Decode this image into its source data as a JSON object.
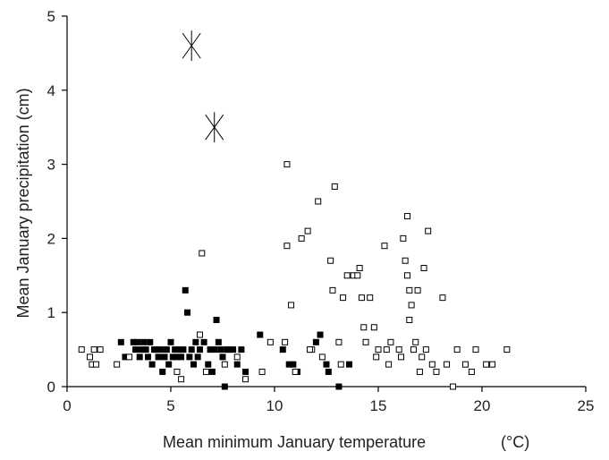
{
  "chart_data": {
    "type": "scatter",
    "xlabel": "Mean minimum January temperature",
    "xlabel_unit": "(°C)",
    "ylabel": "Mean January precipitation (cm)",
    "xlim": [
      0,
      25
    ],
    "ylim": [
      0,
      5
    ],
    "xticks": [
      0,
      5,
      10,
      15,
      20,
      25
    ],
    "yticks": [
      0,
      1,
      2,
      3,
      4,
      5
    ],
    "grid": false,
    "series": [
      {
        "marker": "filled-square",
        "color": "#000000",
        "points": [
          [
            2.6,
            0.6
          ],
          [
            2.8,
            0.4
          ],
          [
            3.2,
            0.6
          ],
          [
            3.3,
            0.5
          ],
          [
            3.4,
            0.6
          ],
          [
            3.5,
            0.4
          ],
          [
            3.6,
            0.5
          ],
          [
            3.7,
            0.6
          ],
          [
            3.8,
            0.5
          ],
          [
            3.9,
            0.4
          ],
          [
            4.0,
            0.6
          ],
          [
            4.1,
            0.3
          ],
          [
            4.2,
            0.5
          ],
          [
            4.3,
            0.5
          ],
          [
            4.4,
            0.4
          ],
          [
            4.5,
            0.5
          ],
          [
            4.6,
            0.2
          ],
          [
            4.7,
            0.4
          ],
          [
            4.8,
            0.5
          ],
          [
            4.9,
            0.3
          ],
          [
            5.0,
            0.6
          ],
          [
            5.1,
            0.4
          ],
          [
            5.2,
            0.5
          ],
          [
            5.3,
            0.4
          ],
          [
            5.4,
            0.5
          ],
          [
            5.5,
            0.4
          ],
          [
            5.6,
            0.5
          ],
          [
            5.7,
            1.3
          ],
          [
            5.8,
            1.0
          ],
          [
            5.9,
            0.4
          ],
          [
            6.0,
            0.5
          ],
          [
            6.1,
            0.3
          ],
          [
            6.2,
            0.6
          ],
          [
            6.3,
            0.4
          ],
          [
            6.4,
            0.5
          ],
          [
            6.6,
            0.6
          ],
          [
            6.8,
            0.3
          ],
          [
            6.9,
            0.5
          ],
          [
            7.0,
            0.2
          ],
          [
            7.1,
            0.5
          ],
          [
            7.2,
            0.9
          ],
          [
            7.3,
            0.6
          ],
          [
            7.4,
            0.5
          ],
          [
            7.5,
            0.4
          ],
          [
            7.6,
            0.0
          ],
          [
            7.7,
            0.5
          ],
          [
            7.8,
            0.5
          ],
          [
            8.0,
            0.5
          ],
          [
            8.2,
            0.3
          ],
          [
            8.4,
            0.5
          ],
          [
            8.6,
            0.2
          ],
          [
            9.3,
            0.7
          ],
          [
            10.4,
            0.5
          ],
          [
            10.7,
            0.3
          ],
          [
            10.9,
            0.3
          ],
          [
            11.1,
            0.2
          ],
          [
            12.0,
            0.6
          ],
          [
            12.2,
            0.7
          ],
          [
            12.5,
            0.3
          ],
          [
            12.6,
            0.2
          ],
          [
            13.1,
            0.0
          ],
          [
            13.6,
            0.3
          ]
        ]
      },
      {
        "marker": "open-square",
        "color": "#000000",
        "points": [
          [
            0.7,
            0.5
          ],
          [
            1.1,
            0.4
          ],
          [
            1.2,
            0.3
          ],
          [
            1.3,
            0.5
          ],
          [
            1.4,
            0.3
          ],
          [
            1.6,
            0.5
          ],
          [
            2.4,
            0.3
          ],
          [
            3.0,
            0.4
          ],
          [
            5.3,
            0.2
          ],
          [
            5.5,
            0.1
          ],
          [
            6.4,
            0.7
          ],
          [
            6.5,
            1.8
          ],
          [
            6.7,
            0.2
          ],
          [
            7.6,
            0.3
          ],
          [
            8.2,
            0.4
          ],
          [
            8.6,
            0.1
          ],
          [
            9.4,
            0.2
          ],
          [
            9.8,
            0.6
          ],
          [
            10.5,
            0.6
          ],
          [
            10.6,
            3.0
          ],
          [
            10.6,
            1.9
          ],
          [
            10.8,
            1.1
          ],
          [
            11.0,
            0.2
          ],
          [
            11.3,
            2.0
          ],
          [
            11.6,
            2.1
          ],
          [
            11.8,
            0.5
          ],
          [
            12.1,
            2.5
          ],
          [
            12.3,
            0.4
          ],
          [
            12.7,
            1.7
          ],
          [
            12.8,
            1.3
          ],
          [
            12.9,
            2.7
          ],
          [
            13.1,
            0.6
          ],
          [
            13.3,
            1.2
          ],
          [
            13.5,
            1.5
          ],
          [
            13.8,
            1.5
          ],
          [
            14.0,
            1.5
          ],
          [
            14.1,
            1.6
          ],
          [
            14.2,
            1.2
          ],
          [
            14.3,
            0.8
          ],
          [
            14.4,
            0.6
          ],
          [
            14.6,
            1.2
          ],
          [
            14.8,
            0.8
          ],
          [
            15.0,
            0.5
          ],
          [
            15.3,
            1.9
          ],
          [
            15.4,
            0.5
          ],
          [
            15.6,
            0.6
          ],
          [
            16.0,
            0.5
          ],
          [
            16.2,
            2.0
          ],
          [
            16.3,
            1.7
          ],
          [
            16.4,
            2.3
          ],
          [
            16.4,
            1.5
          ],
          [
            16.5,
            1.3
          ],
          [
            16.5,
            0.9
          ],
          [
            16.6,
            1.1
          ],
          [
            16.8,
            0.6
          ],
          [
            16.9,
            1.3
          ],
          [
            17.1,
            0.4
          ],
          [
            17.2,
            1.6
          ],
          [
            17.3,
            0.5
          ],
          [
            17.4,
            2.1
          ],
          [
            17.6,
            0.3
          ],
          [
            17.8,
            0.2
          ],
          [
            18.1,
            1.2
          ],
          [
            18.3,
            0.3
          ],
          [
            18.6,
            0.0
          ],
          [
            18.8,
            0.5
          ],
          [
            19.2,
            0.3
          ],
          [
            19.5,
            0.2
          ],
          [
            19.7,
            0.5
          ],
          [
            20.2,
            0.3
          ],
          [
            20.5,
            0.3
          ],
          [
            21.2,
            0.5
          ],
          [
            13.2,
            0.3
          ],
          [
            15.5,
            0.3
          ],
          [
            16.1,
            0.4
          ],
          [
            17.0,
            0.2
          ],
          [
            11.7,
            0.5
          ],
          [
            14.9,
            0.4
          ],
          [
            16.7,
            0.5
          ]
        ]
      },
      {
        "marker": "star",
        "color": "#000000",
        "points": [
          [
            6.0,
            4.6
          ],
          [
            7.1,
            3.5
          ]
        ]
      }
    ]
  }
}
